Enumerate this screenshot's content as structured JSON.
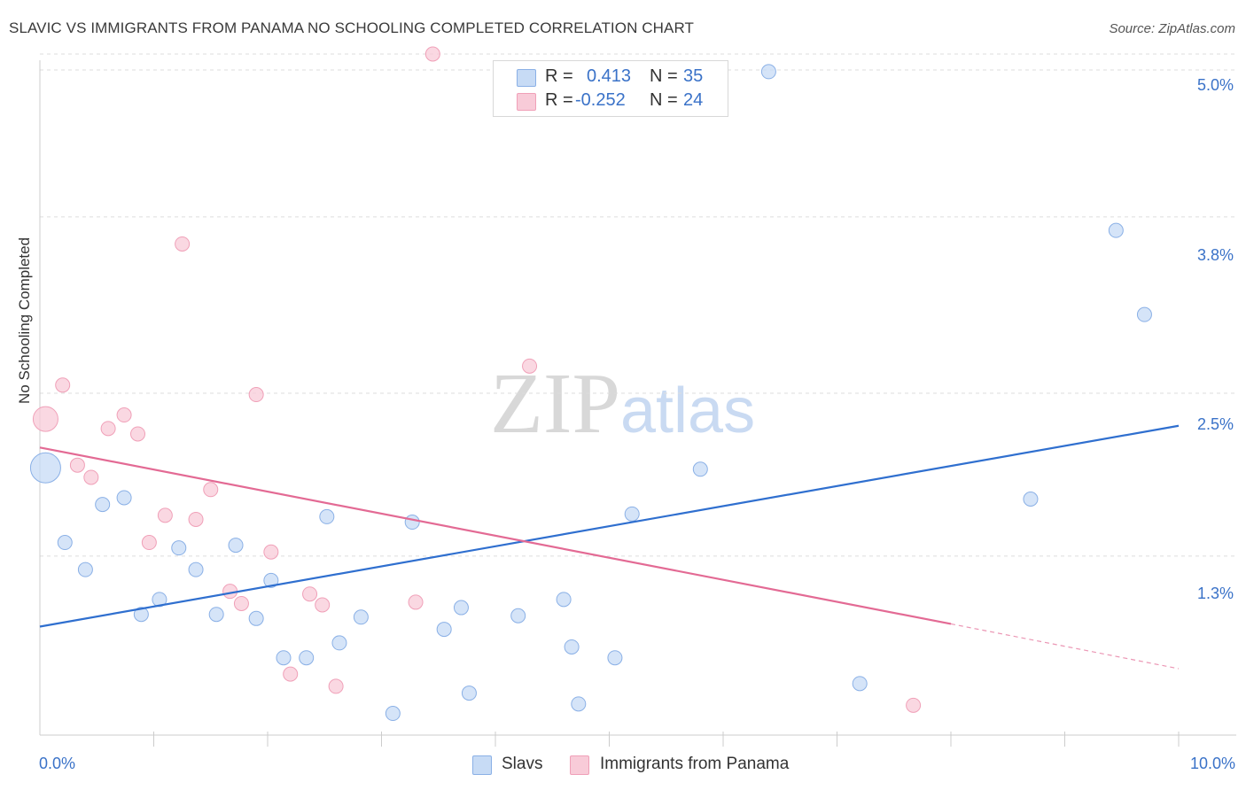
{
  "title": "SLAVIC VS IMMIGRANTS FROM PANAMA NO SCHOOLING COMPLETED CORRELATION CHART",
  "source": "Source: ZipAtlas.com",
  "watermark": {
    "zip": "ZIP",
    "atlas": "atlas"
  },
  "legend_top": {
    "rows": [
      {
        "r_label": "R =",
        "r_value": "0.413",
        "n_label": "N =",
        "n_value": "35"
      },
      {
        "r_label": "R =",
        "r_value": "-0.252",
        "n_label": "N =",
        "n_value": "24"
      }
    ]
  },
  "colors": {
    "slavs_fill": "#c7dbf5",
    "slavs_stroke": "#8ab0e6",
    "slavs_line": "#2f6fcf",
    "panama_fill": "#f8cbd8",
    "panama_stroke": "#f0a0b8",
    "panama_line": "#e36a94",
    "axis_text": "#3a72c8",
    "grid": "#dddddd"
  },
  "chart_data": {
    "type": "scatter",
    "title": "SLAVIC VS IMMIGRANTS FROM PANAMA NO SCHOOLING COMPLETED CORRELATION CHART",
    "xlabel": "",
    "ylabel": "No Schooling Completed",
    "xlim": [
      0,
      10
    ],
    "ylim": [
      0,
      5.1
    ],
    "x_tick_labels": [
      "0.0%",
      "10.0%"
    ],
    "y_ticks": [
      1.3,
      2.5,
      3.8,
      5.0
    ],
    "y_tick_labels": [
      "1.3%",
      "2.5%",
      "3.8%",
      "5.0%"
    ],
    "series": [
      {
        "name": "Slavs",
        "r": 0.413,
        "n": 35,
        "points": [
          {
            "x": 0.05,
            "y": 1.95,
            "s": 3
          },
          {
            "x": 0.22,
            "y": 1.4,
            "s": 1
          },
          {
            "x": 0.4,
            "y": 1.2,
            "s": 1
          },
          {
            "x": 0.55,
            "y": 1.68,
            "s": 1
          },
          {
            "x": 0.74,
            "y": 1.73,
            "s": 1
          },
          {
            "x": 0.89,
            "y": 0.87,
            "s": 1
          },
          {
            "x": 1.05,
            "y": 0.98,
            "s": 1
          },
          {
            "x": 1.22,
            "y": 1.36,
            "s": 1
          },
          {
            "x": 1.37,
            "y": 1.2,
            "s": 1
          },
          {
            "x": 1.55,
            "y": 0.87,
            "s": 1
          },
          {
            "x": 1.72,
            "y": 1.38,
            "s": 1
          },
          {
            "x": 1.9,
            "y": 0.84,
            "s": 1
          },
          {
            "x": 2.03,
            "y": 1.12,
            "s": 1
          },
          {
            "x": 2.14,
            "y": 0.55,
            "s": 1
          },
          {
            "x": 2.34,
            "y": 0.55,
            "s": 1
          },
          {
            "x": 2.52,
            "y": 1.59,
            "s": 1
          },
          {
            "x": 2.63,
            "y": 0.66,
            "s": 1
          },
          {
            "x": 2.82,
            "y": 0.85,
            "s": 1
          },
          {
            "x": 3.1,
            "y": 0.14,
            "s": 1
          },
          {
            "x": 3.27,
            "y": 1.55,
            "s": 1
          },
          {
            "x": 3.55,
            "y": 0.76,
            "s": 1
          },
          {
            "x": 3.7,
            "y": 0.92,
            "s": 1
          },
          {
            "x": 3.77,
            "y": 0.29,
            "s": 1
          },
          {
            "x": 4.2,
            "y": 0.86,
            "s": 1
          },
          {
            "x": 4.6,
            "y": 0.98,
            "s": 1
          },
          {
            "x": 4.67,
            "y": 0.63,
            "s": 1
          },
          {
            "x": 4.73,
            "y": 0.21,
            "s": 1
          },
          {
            "x": 5.05,
            "y": 0.55,
            "s": 1
          },
          {
            "x": 5.2,
            "y": 1.61,
            "s": 1
          },
          {
            "x": 5.8,
            "y": 1.94,
            "s": 1
          },
          {
            "x": 6.4,
            "y": 4.87,
            "s": 1
          },
          {
            "x": 7.2,
            "y": 0.36,
            "s": 1
          },
          {
            "x": 8.7,
            "y": 1.72,
            "s": 1
          },
          {
            "x": 9.45,
            "y": 3.7,
            "s": 1
          },
          {
            "x": 9.7,
            "y": 3.08,
            "s": 1
          }
        ],
        "trend": {
          "x0": 0,
          "y0": 0.78,
          "x1": 10,
          "y1": 2.26
        }
      },
      {
        "name": "Immigrants from Panama",
        "r": -0.252,
        "n": 24,
        "points": [
          {
            "x": 0.05,
            "y": 2.31,
            "s": 2
          },
          {
            "x": 0.2,
            "y": 2.56,
            "s": 1
          },
          {
            "x": 0.33,
            "y": 1.97,
            "s": 1
          },
          {
            "x": 0.45,
            "y": 1.88,
            "s": 1
          },
          {
            "x": 0.6,
            "y": 2.24,
            "s": 1
          },
          {
            "x": 0.74,
            "y": 2.34,
            "s": 1
          },
          {
            "x": 0.86,
            "y": 2.2,
            "s": 1
          },
          {
            "x": 0.96,
            "y": 1.4,
            "s": 1
          },
          {
            "x": 1.1,
            "y": 1.6,
            "s": 1
          },
          {
            "x": 1.25,
            "y": 3.6,
            "s": 1
          },
          {
            "x": 1.37,
            "y": 1.57,
            "s": 1
          },
          {
            "x": 1.5,
            "y": 1.79,
            "s": 1
          },
          {
            "x": 1.67,
            "y": 1.04,
            "s": 1
          },
          {
            "x": 1.77,
            "y": 0.95,
            "s": 1
          },
          {
            "x": 1.9,
            "y": 2.49,
            "s": 1
          },
          {
            "x": 2.03,
            "y": 1.33,
            "s": 1
          },
          {
            "x": 2.2,
            "y": 0.43,
            "s": 1
          },
          {
            "x": 2.37,
            "y": 1.02,
            "s": 1
          },
          {
            "x": 2.48,
            "y": 0.94,
            "s": 1
          },
          {
            "x": 2.6,
            "y": 0.34,
            "s": 1
          },
          {
            "x": 3.3,
            "y": 0.96,
            "s": 1
          },
          {
            "x": 3.45,
            "y": 5.0,
            "s": 1
          },
          {
            "x": 4.3,
            "y": 2.7,
            "s": 1
          },
          {
            "x": 7.67,
            "y": 0.2,
            "s": 1
          }
        ],
        "trend": {
          "x0": 0,
          "y0": 2.1,
          "x1": 8.0,
          "y1": 0.8,
          "x_dash_end": 10,
          "y_dash_end": 0.47
        }
      }
    ]
  }
}
